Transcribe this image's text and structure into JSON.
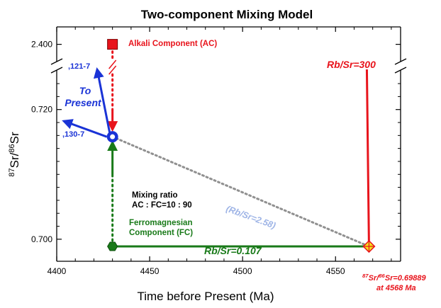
{
  "chart_data": {
    "type": "line",
    "title": "Two-component Mixing Model",
    "xlabel": "Time before Present (Ma)",
    "ylabel_parts": [
      "87",
      "Sr/",
      "86",
      "Sr"
    ],
    "x_ticks": [
      4400,
      4450,
      4500,
      4550
    ],
    "y_ticks_lower": [
      0.7,
      0.72
    ],
    "y_tick_upper": 2.4,
    "y_tick_labels": [
      "0.700",
      "0.720",
      "2.400"
    ],
    "xlim": [
      4400,
      4585
    ],
    "ylim_lower": [
      0.6966,
      0.7251
    ],
    "ylim_upper_break": [
      2.395,
      2.408
    ],
    "axis_break": "y",
    "points": {
      "initial": {
        "x": 4568,
        "y": 0.69889,
        "label_parts": [
          "87",
          "Sr/",
          "86",
          "Sr=0.69889"
        ],
        "label_line2": "at 4568 Ma"
      },
      "fc_present": {
        "x": 4430,
        "y": 0.69889
      },
      "ac_present": {
        "x": 4430,
        "y": 2.4
      },
      "mixture": {
        "x": 4430,
        "y": 0.7158
      },
      "fc_end": {
        "x": 4430,
        "y": 0.7113
      }
    },
    "series": [
      {
        "name": "Rb/Sr=300",
        "color": "#e8141c"
      },
      {
        "name": "Rb/Sr=0.107",
        "color": "#197a19"
      },
      {
        "name": "(Rb/Sr=2.58)",
        "color": "#909090"
      }
    ],
    "annotations": {
      "ac": "Alkali Component (AC)",
      "fc_line1": "Ferromagnesian",
      "fc_line2": "Component (FC)",
      "ratio_line1": "Mixing ratio",
      "ratio_line2": "AC : FC=10 : 90",
      "present_line1": "To",
      "present_line2": "Present",
      "arrow_upper": ",121-7",
      "arrow_lower": ",130-7"
    },
    "colors": {
      "red": "#e8141c",
      "green": "#197a19",
      "blue": "#1a33d6",
      "gray": "#909090",
      "light_blue": "#9eb4e6",
      "yellow": "#f2e11a"
    }
  }
}
